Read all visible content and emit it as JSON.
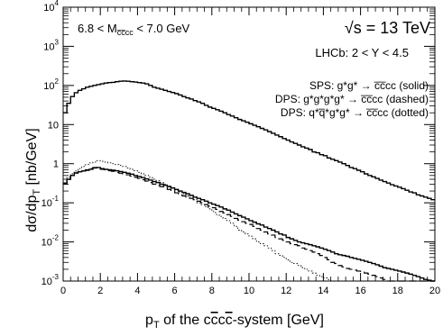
{
  "chart_data": {
    "type": "histogram",
    "xlabel": "p_T of the c̅c̅cc-system   [GeV]",
    "xlabel_parts": {
      "p": "p",
      "sub": "T",
      "rest_a": " of the c",
      "bar1": "c",
      "mid": "c",
      "bar2": "c",
      "rest_b": "-system   [GeV]"
    },
    "ylabel_parts": {
      "main": "dσ/dp",
      "sub": "T",
      "unit": "  [nb/GeV]"
    },
    "xlim": [
      0,
      20
    ],
    "ylim": [
      0.001,
      10000
    ],
    "yscale": "log",
    "x_ticks": [
      "0",
      "2",
      "4",
      "6",
      "8",
      "10",
      "12",
      "14",
      "16",
      "18",
      "20"
    ],
    "y_ticks": [
      {
        "base": "10",
        "exp": "-3"
      },
      {
        "base": "10",
        "exp": "-2"
      },
      {
        "base": "10",
        "exp": "-1"
      },
      {
        "base": "1",
        "exp": ""
      },
      {
        "base": "10",
        "exp": ""
      },
      {
        "base": "10",
        "exp": "2"
      },
      {
        "base": "10",
        "exp": "3"
      },
      {
        "base": "10",
        "exp": "4"
      }
    ],
    "annotations": {
      "mass_range": {
        "left": "6.8 < M",
        "sub": "c̅c̅cc",
        "right": " < 7.0 GeV"
      },
      "energy": {
        "sqrt": "√",
        "s": "s = 13 TeV"
      },
      "acceptance": "LHCb: 2 < Y < 4.5"
    },
    "legend": [
      {
        "text": "SPS: g*g* → c̅c̅cc (solid)",
        "style": "solid"
      },
      {
        "text": "DPS: g*g*g*g* → c̅c̅cc (dashed)",
        "style": "dashed"
      },
      {
        "text": "DPS: q*q̅*g*g* → c̅c̅cc (dotted)",
        "style": "dotted"
      }
    ],
    "legend_position": "top-right",
    "bin_width": 0.2,
    "series": [
      {
        "style": "solid",
        "values": [
          20,
          35,
          52,
          65,
          75,
          82,
          90,
          95,
          100,
          105,
          110,
          115,
          118,
          120,
          125,
          128,
          130,
          128,
          125,
          122,
          118,
          115,
          110,
          100,
          90,
          85,
          80,
          75,
          70,
          66,
          62,
          57,
          52,
          48,
          45,
          41,
          38,
          35,
          31,
          28,
          26,
          24,
          22,
          20,
          18,
          16.5,
          15,
          13.5,
          12.5,
          11.5,
          10.5,
          9.6,
          8.8,
          8.0,
          7.3,
          6.6,
          6.0,
          5.4,
          4.9,
          4.4,
          4.0,
          3.6,
          3.3,
          3.0,
          2.7,
          2.5,
          2.3,
          2.0,
          1.9,
          1.7,
          1.6,
          1.4,
          1.3,
          1.2,
          1.1,
          1.0,
          0.9,
          0.8,
          0.75,
          0.68,
          0.62,
          0.55,
          0.5,
          0.46,
          0.42,
          0.38,
          0.35,
          0.32,
          0.29,
          0.27,
          0.25,
          0.23,
          0.21,
          0.19,
          0.18,
          0.16,
          0.15,
          0.14,
          0.13,
          0.12
        ]
      },
      {
        "style": "solid-dps-mirror",
        "values": [
          0.32,
          0.4,
          0.5,
          0.58,
          0.62,
          0.65,
          0.68,
          0.72,
          0.78,
          0.8,
          0.75,
          0.72,
          0.7,
          0.68,
          0.66,
          0.63,
          0.6,
          0.57,
          0.54,
          0.5,
          0.47,
          0.44,
          0.41,
          0.38,
          0.35,
          0.33,
          0.3,
          0.28,
          0.26,
          0.24,
          0.22,
          0.2,
          0.185,
          0.17,
          0.155,
          0.14,
          0.13,
          0.12,
          0.11,
          0.1,
          0.092,
          0.085,
          0.078,
          0.07,
          0.065,
          0.058,
          0.052,
          0.047,
          0.043,
          0.039,
          0.035,
          0.032,
          0.029,
          0.027,
          0.024,
          0.022,
          0.02,
          0.018,
          0.016,
          0.015,
          0.013,
          0.012,
          0.011,
          0.01,
          0.0095,
          0.009,
          0.0085,
          0.008,
          0.0075,
          0.007,
          0.0065,
          0.006,
          0.0055,
          0.005,
          0.0047,
          0.0045,
          0.0043,
          0.004,
          0.0038,
          0.0036,
          0.0034,
          0.0032,
          0.003,
          0.0028,
          0.0026,
          0.0024,
          0.0022,
          0.0021,
          0.002,
          0.0019,
          0.0018,
          0.0017,
          0.0016,
          0.0015,
          0.0014,
          0.0013,
          0.0012,
          0.0011,
          0.00105,
          0.001
        ]
      },
      {
        "style": "dashed",
        "values": [
          0.3,
          0.4,
          0.5,
          0.58,
          0.62,
          0.66,
          0.7,
          0.75,
          0.8,
          0.78,
          0.72,
          0.7,
          0.66,
          0.64,
          0.6,
          0.57,
          0.55,
          0.52,
          0.48,
          0.45,
          0.42,
          0.39,
          0.36,
          0.33,
          0.3,
          0.28,
          0.26,
          0.24,
          0.22,
          0.2,
          0.18,
          0.16,
          0.15,
          0.14,
          0.13,
          0.12,
          0.11,
          0.1,
          0.09,
          0.082,
          0.075,
          0.068,
          0.06,
          0.055,
          0.05,
          0.045,
          0.04,
          0.036,
          0.033,
          0.03,
          0.028,
          0.025,
          0.022,
          0.02,
          0.018,
          0.016,
          0.015,
          0.013,
          0.012,
          0.011,
          0.01,
          0.009,
          0.0085,
          0.008,
          0.007,
          0.0065,
          0.006,
          0.0055,
          0.005,
          0.0045,
          0.004,
          0.0035,
          0.003,
          0.0028,
          0.0025,
          0.0023,
          0.0021,
          0.002,
          0.0019,
          0.0018,
          0.0017,
          0.0016,
          0.0015,
          0.0014,
          0.0013,
          0.0012,
          0.0011,
          0.001,
          0.001,
          0.001,
          0.001,
          0.001,
          0.001,
          0.001,
          0.001,
          0.001,
          0.001,
          0.001,
          0.001,
          0.001
        ]
      },
      {
        "style": "dotted",
        "values": [
          0.3,
          0.45,
          0.55,
          0.65,
          0.75,
          0.85,
          0.95,
          1.05,
          1.1,
          1.2,
          1.15,
          1.1,
          1.05,
          1.0,
          0.95,
          0.9,
          0.85,
          0.78,
          0.72,
          0.66,
          0.6,
          0.55,
          0.5,
          0.45,
          0.4,
          0.37,
          0.33,
          0.3,
          0.27,
          0.24,
          0.21,
          0.19,
          0.17,
          0.15,
          0.13,
          0.12,
          0.1,
          0.09,
          0.08,
          0.07,
          0.06,
          0.05,
          0.045,
          0.04,
          0.035,
          0.03,
          0.025,
          0.02,
          0.018,
          0.016,
          0.014,
          0.012,
          0.01,
          0.009,
          0.008,
          0.007,
          0.006,
          0.005,
          0.0045,
          0.004,
          0.0035,
          0.003,
          0.0028,
          0.0025,
          0.0022,
          0.002,
          0.0018,
          0.0016,
          0.0014,
          0.0013,
          0.0012,
          0.0011,
          0.001,
          0.001,
          0.001,
          0.001,
          0.001,
          0.001,
          0.001,
          0.001,
          0.001,
          0.001,
          0.001,
          0.001,
          0.001,
          0.001,
          0.001,
          0.001,
          0.001,
          0.001,
          0.001,
          0.001,
          0.001,
          0.001,
          0.001,
          0.001,
          0.001,
          0.001,
          0.001,
          0.001
        ]
      }
    ]
  }
}
